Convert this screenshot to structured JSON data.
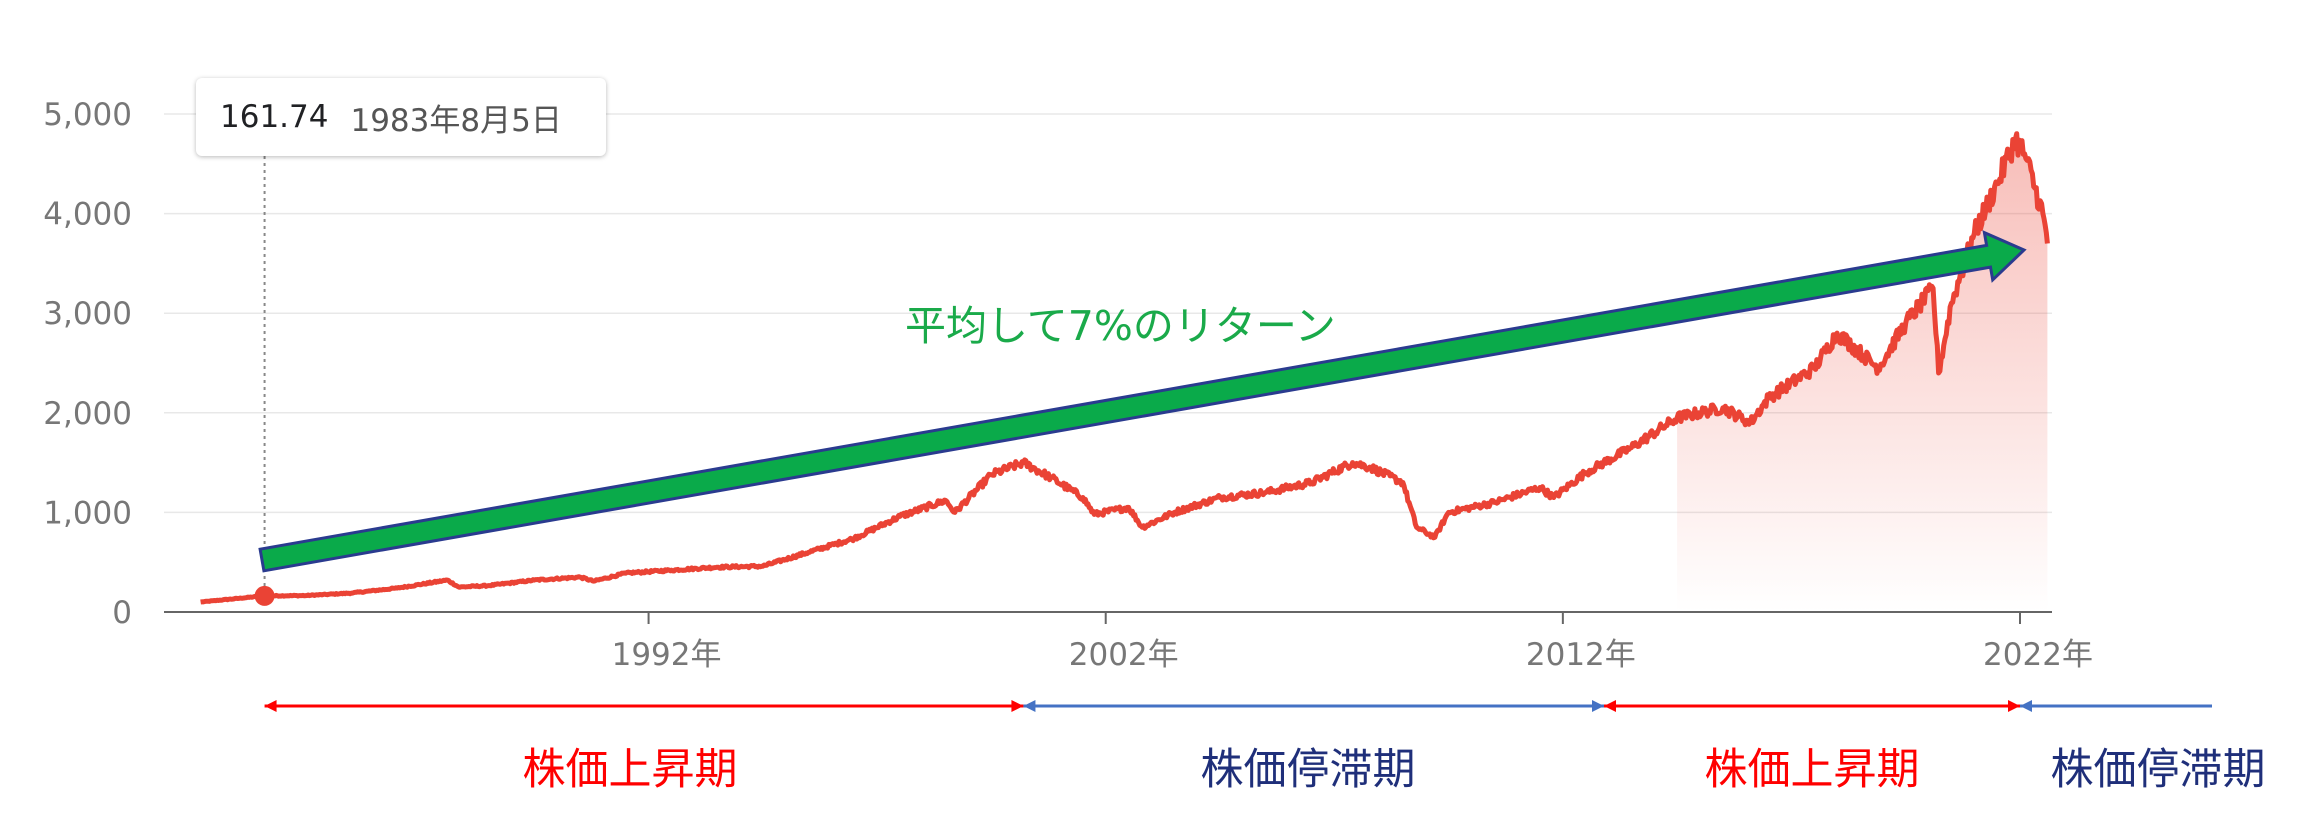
{
  "tooltip": {
    "value": "161.74",
    "date": "1983年8月5日"
  },
  "annotation": {
    "text": "平均して7%のリターン",
    "color": "#1aaa4a"
  },
  "periods": [
    {
      "label": "株価上昇期",
      "color": "#ff0000",
      "start": 1983.6,
      "end": 2000.2
    },
    {
      "label": "株価停滞期",
      "color": "#1f2f7a",
      "start": 2000.2,
      "end": 2012.9
    },
    {
      "label": "株価上昇期",
      "color": "#ff0000",
      "start": 2012.9,
      "end": 2022.0
    },
    {
      "label": "株価停滞期",
      "color": "#1f2f7a",
      "start": 2022.0,
      "end": 2026.3
    }
  ],
  "colors": {
    "line": "#ea4335",
    "arrow_fill": "#0aaa4a",
    "arrow_stroke": "#2a3b8f",
    "up_arrow": "#ff0000",
    "flat_arrow": "#4472c4"
  },
  "chart_data": {
    "type": "line",
    "title": "",
    "xlabel": "",
    "ylabel": "",
    "xlim": [
      1982.1,
      2022.7
    ],
    "ylim": [
      0,
      5000
    ],
    "yticks": [
      0,
      1000,
      2000,
      3000,
      4000,
      5000
    ],
    "ytick_labels": [
      "0",
      "1,000",
      "2,000",
      "3,000",
      "4,000",
      "5,000"
    ],
    "xticks": [
      1992,
      2002,
      2012,
      2022
    ],
    "xtick_labels": [
      "1992年",
      "2002年",
      "2012年",
      "2022年"
    ],
    "grid": true,
    "series": [
      {
        "x": [
          1982.2,
          1983.6,
          1984.5,
          1985.5,
          1986.5,
          1987.6,
          1987.85,
          1988.5,
          1989.5,
          1990.5,
          1990.8,
          1991.5,
          1992.5,
          1993.5,
          1994.5,
          1995.5,
          1996.5,
          1997.5,
          1998.5,
          1998.7,
          1999.5,
          2000.2,
          2000.8,
          2001.5,
          2001.75,
          2002.5,
          2002.8,
          2003.5,
          2004.5,
          2005.5,
          2006.5,
          2007.4,
          2007.8,
          2008.5,
          2008.8,
          2009.2,
          2009.5,
          2010.5,
          2011.5,
          2011.8,
          2012.5,
          2013.5,
          2014.5,
          2015.5,
          2016.1,
          2016.5,
          2017.5,
          2018.0,
          2018.9,
          2019.5,
          2020.1,
          2020.22,
          2020.5,
          2021.0,
          2021.5,
          2021.9,
          2022.1,
          2022.5,
          2022.6
        ],
        "y": [
          100,
          162,
          165,
          190,
          240,
          320,
          250,
          265,
          320,
          350,
          310,
          390,
          420,
          450,
          460,
          600,
          740,
          960,
          1120,
          1000,
          1380,
          1500,
          1350,
          1150,
          980,
          1050,
          850,
          1000,
          1150,
          1200,
          1300,
          1500,
          1450,
          1300,
          850,
          750,
          1000,
          1100,
          1250,
          1150,
          1400,
          1650,
          1950,
          2050,
          1900,
          2150,
          2450,
          2800,
          2450,
          2900,
          3250,
          2400,
          3100,
          3800,
          4300,
          4750,
          4600,
          4000,
          3700
        ]
      }
    ]
  }
}
